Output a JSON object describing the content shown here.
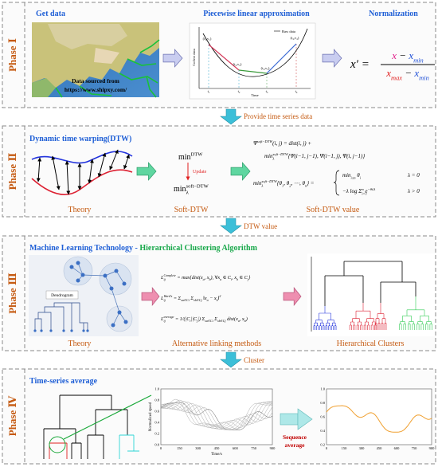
{
  "connectors": [
    "Provide time series data",
    "DTW value",
    "Cluster"
  ],
  "phase_1": {
    "label": "Phase Ⅰ",
    "get_data": {
      "title": "Get data",
      "source": [
        "Data sourced from",
        "https://www.shipxy.com/"
      ]
    },
    "pla": {
      "title": "Piecewise linear approximation",
      "legend": "Raw data",
      "y_label": "Collect data",
      "x_label": "Time",
      "points": [
        "(t₁,v₁)",
        "(t₂,v₂)",
        "(t₃,v₃)",
        "(t₄,v₄)"
      ],
      "ticks": [
        "t₁",
        "t₂",
        "t₃",
        "t₄"
      ]
    },
    "normalization": {
      "title": "Normalization",
      "lhs": [
        {
          "t": "x′ ="
        }
      ],
      "numerator": [
        {
          "t": "x",
          "color": "#e0218a"
        },
        {
          "t": " − "
        },
        {
          "t": "x",
          "color": "#1f4fd6"
        },
        {
          "sub": "min",
          "color": "#1f4fd6"
        }
      ],
      "denominator": [
        {
          "t": "x",
          "color": "#e01f1f"
        },
        {
          "sub": "max",
          "color": "#e01f1f"
        },
        {
          "t": " − "
        },
        {
          "t": "x",
          "color": "#1f4fd6"
        },
        {
          "sub": "min",
          "color": "#1f4fd6"
        }
      ]
    }
  },
  "phase_2": {
    "label": "Phase Ⅱ",
    "title": "Dynamic time warping(DTW)",
    "captions": [
      "Theory",
      "Soft-DTW",
      "Soft-DTW value"
    ],
    "min_dtw": [
      {
        "t": "min"
      },
      {
        "sup": "DTW"
      }
    ],
    "update": "Update",
    "min_soft": [
      {
        "t": "min"
      },
      {
        "sub": "λ"
      },
      {
        "sup": "soft−DTW"
      }
    ],
    "equations": [
      [
        {
          "t": "Ψ"
        },
        {
          "sup": "soft−DTW"
        },
        {
          "t": "(i, j) = dist(i, j) +"
        }
      ],
      [
        {
          "t": "min"
        },
        {
          "sub": "λ"
        },
        {
          "sup": "soft−DTW"
        },
        {
          "t": "{Ψ(i−1, j−1), Ψ(i−1, j), Ψ(i, j−1)}"
        }
      ],
      [
        {
          "t": "min"
        },
        {
          "sub": "λ"
        },
        {
          "sup": "soft−DTW"
        },
        {
          "t": "{θ"
        },
        {
          "sub": "1"
        },
        {
          "t": ", θ"
        },
        {
          "sub": "2"
        },
        {
          "t": ", ⋯, θ"
        },
        {
          "sub": "n"
        },
        {
          "t": "} ="
        }
      ],
      [
        {
          "t": "min"
        },
        {
          "sub": "i≤n"
        },
        {
          "t": " θ"
        },
        {
          "sub": "i"
        }
      ],
      [
        {
          "t": "λ = 0"
        }
      ],
      [
        {
          "t": "−λ log Σ"
        },
        {
          "sub": "i=1"
        },
        {
          "sup": "n"
        },
        {
          "t": " e"
        },
        {
          "sup": "−θi/λ"
        }
      ],
      [
        {
          "t": "λ > 0"
        }
      ]
    ]
  },
  "phase_3": {
    "label": "Phase Ⅲ",
    "title": [
      "Machine Learning Technology - ",
      "Hierarchical Clustering Algorithm"
    ],
    "dendrogram_label": "Dendrogram",
    "captions": [
      "Theory",
      "Alternative linking methods",
      "Hierarchical Clusters"
    ],
    "linkages": [
      [
        {
          "t": "L"
        },
        {
          "sub": "ij"
        },
        {
          "sup": "Complete"
        },
        {
          "t": " = max{dist(x"
        },
        {
          "sub": "a"
        },
        {
          "t": ", x"
        },
        {
          "sub": "b"
        },
        {
          "t": "), ∀x"
        },
        {
          "sub": "a"
        },
        {
          "t": " ∈ C"
        },
        {
          "sub": "i"
        },
        {
          "t": ", x"
        },
        {
          "sub": "b"
        },
        {
          "t": " ∈ C"
        },
        {
          "sub": "j"
        },
        {
          "t": "}"
        }
      ],
      [
        {
          "t": "L"
        },
        {
          "sub": "ij"
        },
        {
          "sup": "Ward's"
        },
        {
          "t": " = Σ"
        },
        {
          "sub": "xa∈Ci"
        },
        {
          "t": " Σ"
        },
        {
          "sub": "xb∈Cj"
        },
        {
          "t": " ‖x"
        },
        {
          "sub": "a"
        },
        {
          "t": " − x"
        },
        {
          "sub": "b"
        },
        {
          "t": "‖"
        },
        {
          "sup": "2"
        }
      ],
      [
        {
          "t": "L"
        },
        {
          "sub": "ij"
        },
        {
          "sup": "average"
        },
        {
          "t": " = 1/(|C"
        },
        {
          "sub": "i"
        },
        {
          "t": "||C"
        },
        {
          "sub": "j"
        },
        {
          "t": "|) Σ"
        },
        {
          "sub": "xa∈Ci"
        },
        {
          "t": " Σ"
        },
        {
          "sub": "xb∈Cj"
        },
        {
          "t": " dist(x"
        },
        {
          "sub": "a"
        },
        {
          "t": ", x"
        },
        {
          "sub": "b"
        },
        {
          "t": ")"
        }
      ]
    ]
  },
  "phase_4": {
    "label": "Phase Ⅳ",
    "title": "Time-series average",
    "sequence_average": [
      "Sequence",
      "average"
    ],
    "speed_chart": {
      "y_label": "Normalized speed",
      "x_label": "Time/s",
      "yticks": [
        "0.0",
        "0.2",
        "0.4",
        "0.6",
        "0.8",
        "1.0"
      ],
      "xticks": [
        "0",
        "150",
        "300",
        "450",
        "600",
        "750",
        "900"
      ]
    },
    "average_chart": {
      "yticks": [
        "0.2",
        "0.4",
        "0.6",
        "0.8",
        "1.0"
      ],
      "xticks": [
        "0",
        "150",
        "300",
        "450",
        "600",
        "750",
        "900"
      ]
    }
  }
}
